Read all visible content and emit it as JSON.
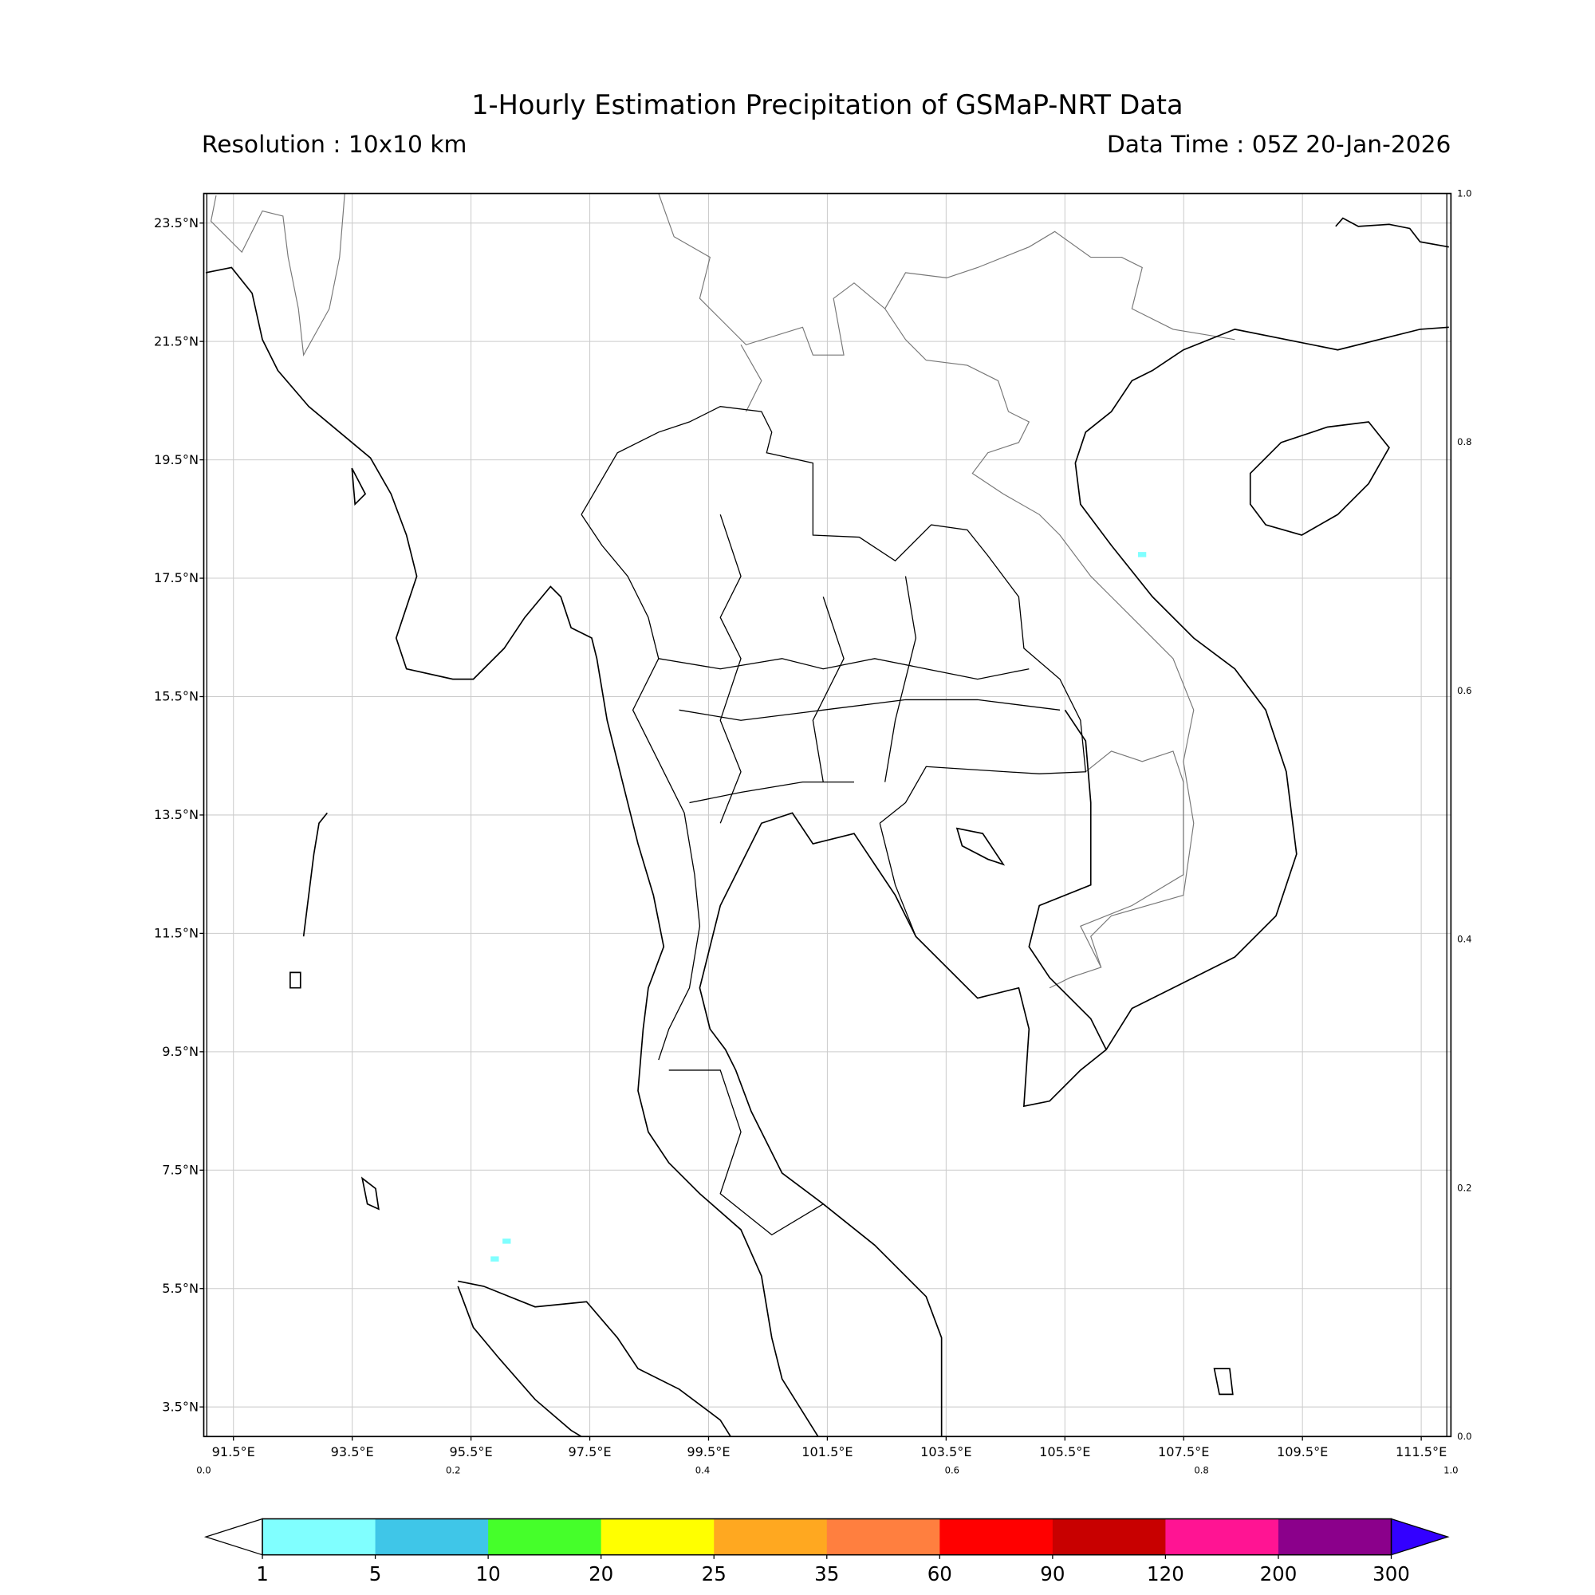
{
  "header": {
    "title": "1-Hourly Estimation Precipitation of GSMaP-NRT Data",
    "resolution": "Resolution : 10x10 km",
    "data_time": "Data Time : 05Z 20-Jan-2026"
  },
  "map": {
    "lon_range": [
      91.0,
      112.0
    ],
    "lat_range": [
      3.0,
      24.0
    ],
    "lon_ticks": [
      91.5,
      93.5,
      95.5,
      97.5,
      99.5,
      101.5,
      103.5,
      105.5,
      107.5,
      109.5,
      111.5
    ],
    "lon_labels": [
      "91.5°E",
      "93.5°E",
      "95.5°E",
      "97.5°E",
      "99.5°E",
      "101.5°E",
      "103.5°E",
      "105.5°E",
      "107.5°E",
      "109.5°E",
      "111.5°E"
    ],
    "lat_ticks": [
      23.5,
      21.5,
      19.5,
      17.5,
      15.5,
      13.5,
      11.5,
      9.5,
      7.5,
      5.5,
      3.5
    ],
    "lat_labels": [
      "23.5°N",
      "21.5°N",
      "19.5°N",
      "17.5°N",
      "15.5°N",
      "13.5°N",
      "11.5°N",
      "9.5°N",
      "7.5°N",
      "5.5°N",
      "3.5°N"
    ],
    "axes_fraction_labels": [
      "0.0",
      "0.2",
      "0.4",
      "0.6",
      "0.8",
      "1.0"
    ],
    "grid": true,
    "precip_cells": [
      {
        "lon": 96.1,
        "lat": 6.3,
        "class": "1-5"
      },
      {
        "lon": 95.9,
        "lat": 6.0,
        "class": "1-5"
      },
      {
        "lon": 106.8,
        "lat": 17.9,
        "class": "1-5"
      }
    ]
  },
  "colorbar": {
    "levels": [
      "1",
      "5",
      "10",
      "20",
      "25",
      "35",
      "60",
      "90",
      "120",
      "200",
      "300"
    ],
    "colors": [
      "#80ffff",
      "#3fc6e8",
      "#45ff2a",
      "#ffff00",
      "#ffa820",
      "#ff7f3f",
      "#ff0000",
      "#c80000",
      "#ff1493",
      "#8b008b"
    ],
    "under_color": "#ffffff",
    "over_color": "#3300ff",
    "extend": "both"
  }
}
